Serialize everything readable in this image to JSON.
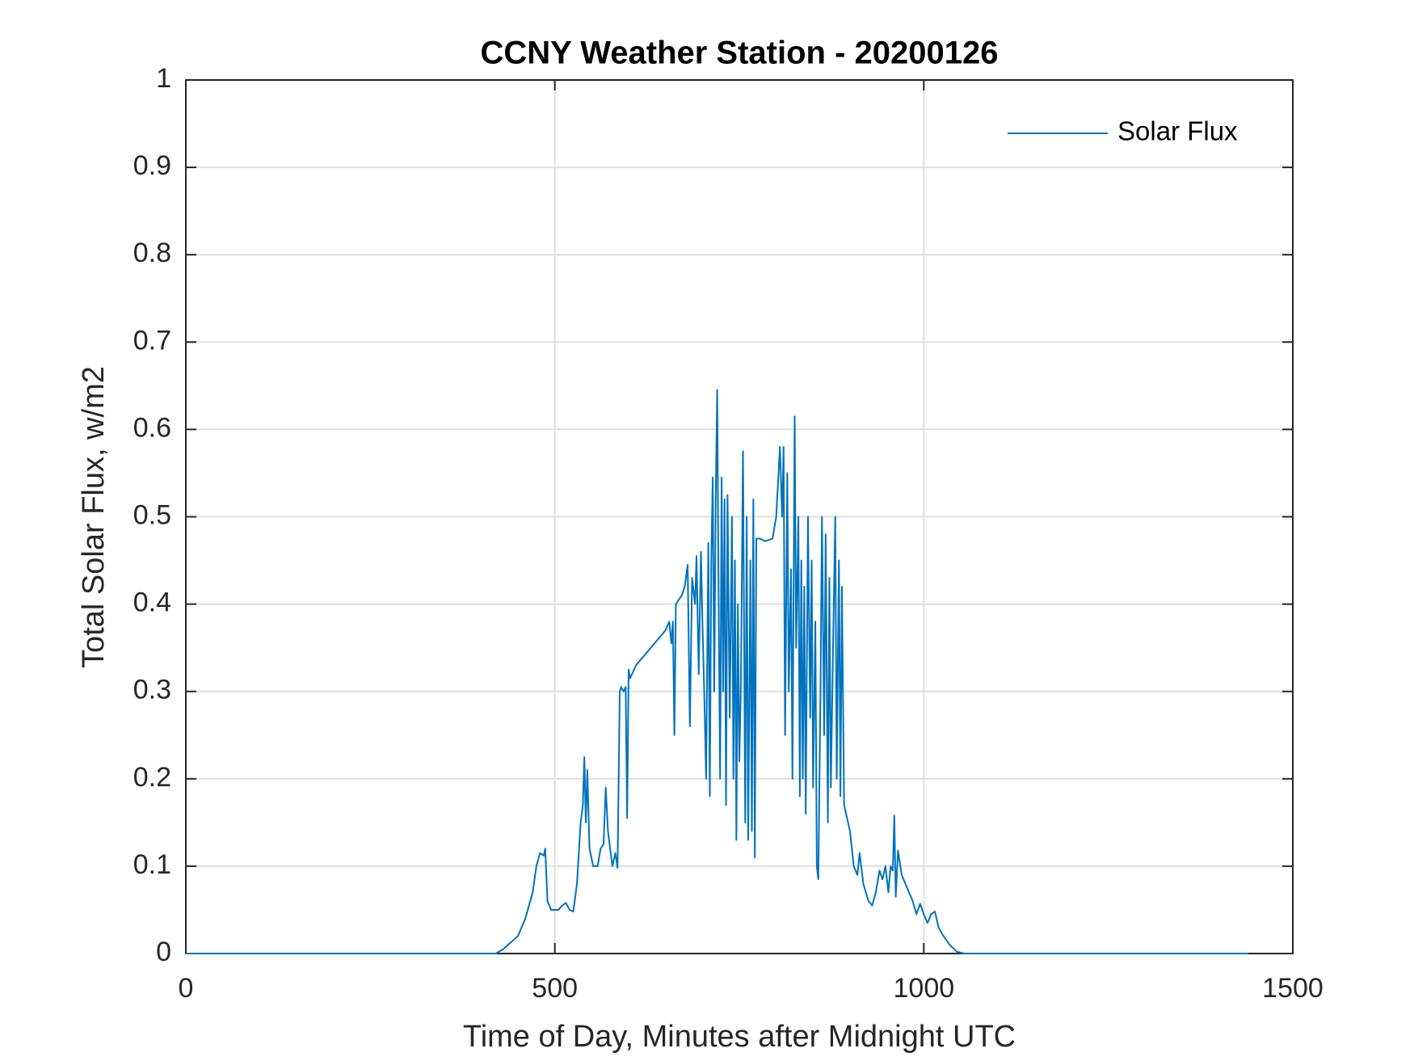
{
  "chart_data": {
    "type": "line",
    "title": "CCNY Weather Station - 20200126",
    "xlabel": "Time of Day, Minutes after Midnight UTC",
    "ylabel": "Total Solar Flux, w/m2",
    "xlim": [
      0,
      1500
    ],
    "xticks": [
      0,
      500,
      1000,
      1500
    ],
    "ylim": [
      0,
      1
    ],
    "yticks": [
      0,
      0.1,
      0.2,
      0.3,
      0.4,
      0.5,
      0.6,
      0.7,
      0.8,
      0.9,
      1
    ],
    "grid": true,
    "legend": "northeast",
    "x": [
      0,
      420,
      430,
      450,
      460,
      470,
      475,
      480,
      485,
      487,
      490,
      495,
      505,
      510,
      515,
      520,
      525,
      530,
      535,
      538,
      540,
      542,
      544,
      547,
      552,
      558,
      562,
      566,
      569,
      572,
      575,
      578,
      582,
      585,
      588,
      590,
      593,
      596,
      598,
      600,
      602,
      610,
      625,
      640,
      650,
      655,
      658,
      660,
      662,
      664,
      672,
      676,
      680,
      683,
      686,
      690,
      692,
      695,
      698,
      700,
      703,
      705,
      708,
      710,
      712,
      714,
      716,
      718,
      720,
      722,
      724,
      726,
      728,
      730,
      732,
      734,
      737,
      740,
      742,
      744,
      746,
      748,
      750,
      752,
      755,
      758,
      760,
      762,
      765,
      767,
      769,
      771,
      773,
      778,
      785,
      795,
      800,
      805,
      808,
      810,
      812,
      815,
      817,
      820,
      822,
      825,
      827,
      830,
      832,
      834,
      836,
      838,
      840,
      843,
      846,
      848,
      850,
      853,
      855,
      857,
      860,
      862,
      865,
      867,
      870,
      872,
      874,
      877,
      880,
      882,
      885,
      887,
      889,
      892,
      900,
      905,
      910,
      913,
      918,
      925,
      930,
      935,
      940,
      944,
      948,
      952,
      955,
      958,
      960,
      962,
      965,
      970,
      975,
      980,
      985,
      990,
      995,
      1000,
      1005,
      1010,
      1015,
      1020,
      1025,
      1035,
      1045,
      1055,
      1440
    ],
    "series": [
      {
        "name": "Solar Flux",
        "color": "#0072bd",
        "values": [
          0,
          0,
          0.005,
          0.02,
          0.04,
          0.07,
          0.1,
          0.115,
          0.112,
          0.12,
          0.06,
          0.05,
          0.05,
          0.055,
          0.058,
          0.05,
          0.048,
          0.08,
          0.15,
          0.17,
          0.225,
          0.15,
          0.21,
          0.12,
          0.1,
          0.1,
          0.12,
          0.125,
          0.19,
          0.14,
          0.12,
          0.1,
          0.115,
          0.098,
          0.3,
          0.305,
          0.3,
          0.305,
          0.155,
          0.325,
          0.315,
          0.33,
          0.345,
          0.36,
          0.37,
          0.38,
          0.355,
          0.38,
          0.25,
          0.4,
          0.41,
          0.42,
          0.445,
          0.26,
          0.43,
          0.4,
          0.455,
          0.32,
          0.46,
          0.38,
          0.28,
          0.2,
          0.47,
          0.18,
          0.45,
          0.545,
          0.3,
          0.52,
          0.645,
          0.4,
          0.2,
          0.545,
          0.3,
          0.52,
          0.17,
          0.525,
          0.27,
          0.5,
          0.2,
          0.45,
          0.13,
          0.4,
          0.22,
          0.3,
          0.575,
          0.15,
          0.5,
          0.13,
          0.45,
          0.14,
          0.52,
          0.11,
          0.475,
          0.475,
          0.472,
          0.475,
          0.5,
          0.58,
          0.5,
          0.58,
          0.25,
          0.55,
          0.3,
          0.44,
          0.2,
          0.615,
          0.35,
          0.5,
          0.18,
          0.45,
          0.2,
          0.42,
          0.16,
          0.5,
          0.27,
          0.45,
          0.19,
          0.38,
          0.1,
          0.085,
          0.3,
          0.5,
          0.25,
          0.48,
          0.15,
          0.43,
          0.19,
          0.35,
          0.5,
          0.2,
          0.45,
          0.18,
          0.42,
          0.17,
          0.14,
          0.1,
          0.09,
          0.115,
          0.08,
          0.06,
          0.055,
          0.07,
          0.095,
          0.085,
          0.1,
          0.07,
          0.1,
          0.095,
          0.158,
          0.065,
          0.118,
          0.09,
          0.08,
          0.07,
          0.06,
          0.045,
          0.057,
          0.045,
          0.035,
          0.045,
          0.048,
          0.03,
          0.022,
          0.01,
          0.002,
          0,
          0
        ]
      }
    ]
  }
}
